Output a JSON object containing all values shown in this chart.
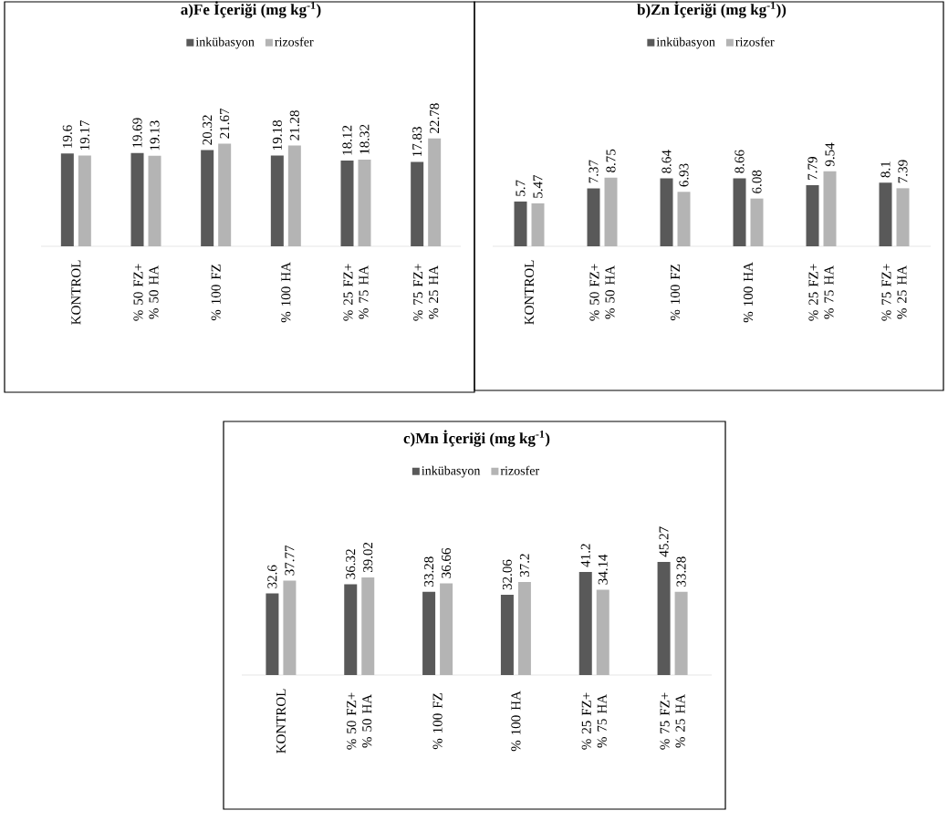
{
  "chart_data": [
    {
      "type": "bar",
      "title": "a)Fe  İçeriği (mg kg$^{-1}$)",
      "categories": [
        "KONTROL",
        "% 50 FZ+ % 50 HA",
        "% 100 FZ",
        "% 100 HA",
        "% 25 FZ+ % 75 HA",
        "% 75 FZ+ % 25 HA"
      ],
      "series": [
        {
          "name": "inkübasyon",
          "color": "#595959",
          "values": [
            19.6,
            19.69,
            20.32,
            19.18,
            18.12,
            17.83
          ]
        },
        {
          "name": "rizosfer",
          "color": "#b4b4b4",
          "values": [
            19.17,
            19.13,
            21.67,
            21.28,
            18.32,
            22.78
          ]
        }
      ],
      "data_labels": true,
      "legend": "top"
    },
    {
      "type": "bar",
      "title": "b)Zn İçeriği (mg kg$^{-1}$))",
      "categories": [
        "KONTROL",
        "% 50 FZ+ % 50 HA",
        "% 100 FZ",
        "% 100 HA",
        "% 25 FZ+ % 75 HA",
        "% 75 FZ+ % 25 HA"
      ],
      "series": [
        {
          "name": "inkübasyon",
          "color": "#595959",
          "values": [
            5.7,
            7.37,
            8.64,
            8.66,
            7.79,
            8.1
          ]
        },
        {
          "name": "rizosfer",
          "color": "#b4b4b4",
          "values": [
            5.47,
            8.75,
            6.93,
            6.08,
            9.54,
            7.39
          ]
        }
      ],
      "data_labels": true,
      "legend": "top"
    },
    {
      "type": "bar",
      "title": "c)Mn İçeriği (mg kg$^{-1}$)",
      "categories": [
        "KONTROL",
        "% 50 FZ+ % 50 HA",
        "% 100 FZ",
        "% 100 HA",
        "% 25 FZ+ % 75 HA",
        "% 75 FZ+ % 25 HA"
      ],
      "series": [
        {
          "name": "inkübasyon",
          "color": "#595959",
          "values": [
            32.6,
            36.32,
            33.28,
            32.06,
            41.2,
            45.27
          ]
        },
        {
          "name": "rizosfer",
          "color": "#b4b4b4",
          "values": [
            37.77,
            39.02,
            36.66,
            37.2,
            34.14,
            33.28
          ]
        }
      ],
      "data_labels": true,
      "legend": "top"
    }
  ]
}
